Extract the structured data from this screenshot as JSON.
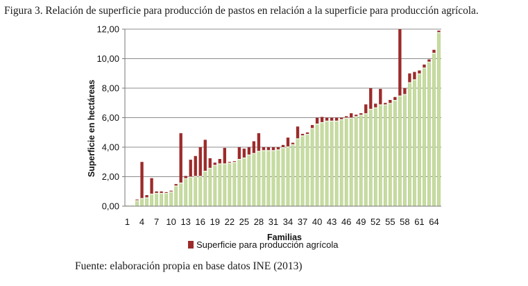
{
  "figure": {
    "caption": "Figura 3. Relación de superficie para producción de pastos en relación a la superficie para producción agrícola.",
    "source": "Fuente: elaboración propia en base datos INE (2013)"
  },
  "chart_data": {
    "type": "bar",
    "stacked": true,
    "title": "",
    "xlabel": "Familias",
    "ylabel": "Superficie en hectáreas",
    "ylim": [
      0,
      12
    ],
    "yticks": [
      "0,00",
      "2,00",
      "4,00",
      "6,00",
      "8,00",
      "10,00",
      "12,00"
    ],
    "xtick_labels": [
      "1",
      "4",
      "7",
      "10",
      "13",
      "16",
      "19",
      "22",
      "25",
      "28",
      "31",
      "34",
      "37",
      "40",
      "43",
      "46",
      "49",
      "52",
      "55",
      "58",
      "61",
      "64"
    ],
    "xtick_positions": [
      1,
      4,
      7,
      10,
      13,
      16,
      19,
      22,
      25,
      28,
      31,
      34,
      37,
      40,
      43,
      46,
      49,
      52,
      55,
      58,
      61,
      64
    ],
    "grid": "horizontal",
    "legend_position": "bottom",
    "categories": [
      1,
      2,
      3,
      4,
      5,
      6,
      7,
      8,
      9,
      10,
      11,
      12,
      13,
      14,
      15,
      16,
      17,
      18,
      19,
      20,
      21,
      22,
      23,
      24,
      25,
      26,
      27,
      28,
      29,
      30,
      31,
      32,
      33,
      34,
      35,
      36,
      37,
      38,
      39,
      40,
      41,
      42,
      43,
      44,
      45,
      46,
      47,
      48,
      49,
      50,
      51,
      52,
      53,
      54,
      55,
      56,
      57,
      58,
      59,
      60,
      61,
      62,
      63,
      64,
      65
    ],
    "colors": {
      "base": "#c6dca0",
      "top": "#9c2b2b",
      "grid": "#8c8c8c"
    },
    "series": [
      {
        "name": "",
        "values": [
          0.05,
          0.05,
          0.4,
          0.55,
          0.6,
          0.85,
          0.9,
          0.9,
          0.9,
          1.0,
          1.4,
          1.6,
          1.9,
          2.0,
          2.05,
          2.05,
          2.4,
          2.6,
          2.8,
          2.9,
          2.9,
          2.95,
          3.0,
          3.2,
          3.3,
          3.5,
          3.6,
          3.75,
          3.8,
          3.8,
          3.8,
          3.85,
          4.0,
          4.05,
          4.2,
          4.6,
          4.8,
          4.9,
          5.3,
          5.6,
          5.7,
          5.8,
          5.8,
          5.8,
          5.9,
          6.0,
          6.0,
          6.1,
          6.2,
          6.3,
          6.6,
          6.7,
          6.9,
          6.9,
          7.0,
          7.2,
          7.5,
          7.6,
          8.4,
          8.6,
          9.0,
          9.4,
          9.8,
          10.4,
          11.8
        ]
      },
      {
        "name": "Superficie para producción agrícola",
        "values": [
          0,
          0,
          0.05,
          2.45,
          0.15,
          1.05,
          0.1,
          0.1,
          0.05,
          0.05,
          0.1,
          3.35,
          0.15,
          1.15,
          1.35,
          1.95,
          2.1,
          0.65,
          0.15,
          0.3,
          1.05,
          0.05,
          0.05,
          0.8,
          0.6,
          0.5,
          0.8,
          1.2,
          0.2,
          0.2,
          0.2,
          0.15,
          0.15,
          0.6,
          0.1,
          0.8,
          0.1,
          0.1,
          0.2,
          0.4,
          0.35,
          0.2,
          0.2,
          0.2,
          0.1,
          0.1,
          0.3,
          0.1,
          0.1,
          0.6,
          1.4,
          0.25,
          1.05,
          0.1,
          0.2,
          0.2,
          4.5,
          0.4,
          0.6,
          0.5,
          0.2,
          0.2,
          0.15,
          0.2,
          0.1
        ]
      }
    ]
  }
}
